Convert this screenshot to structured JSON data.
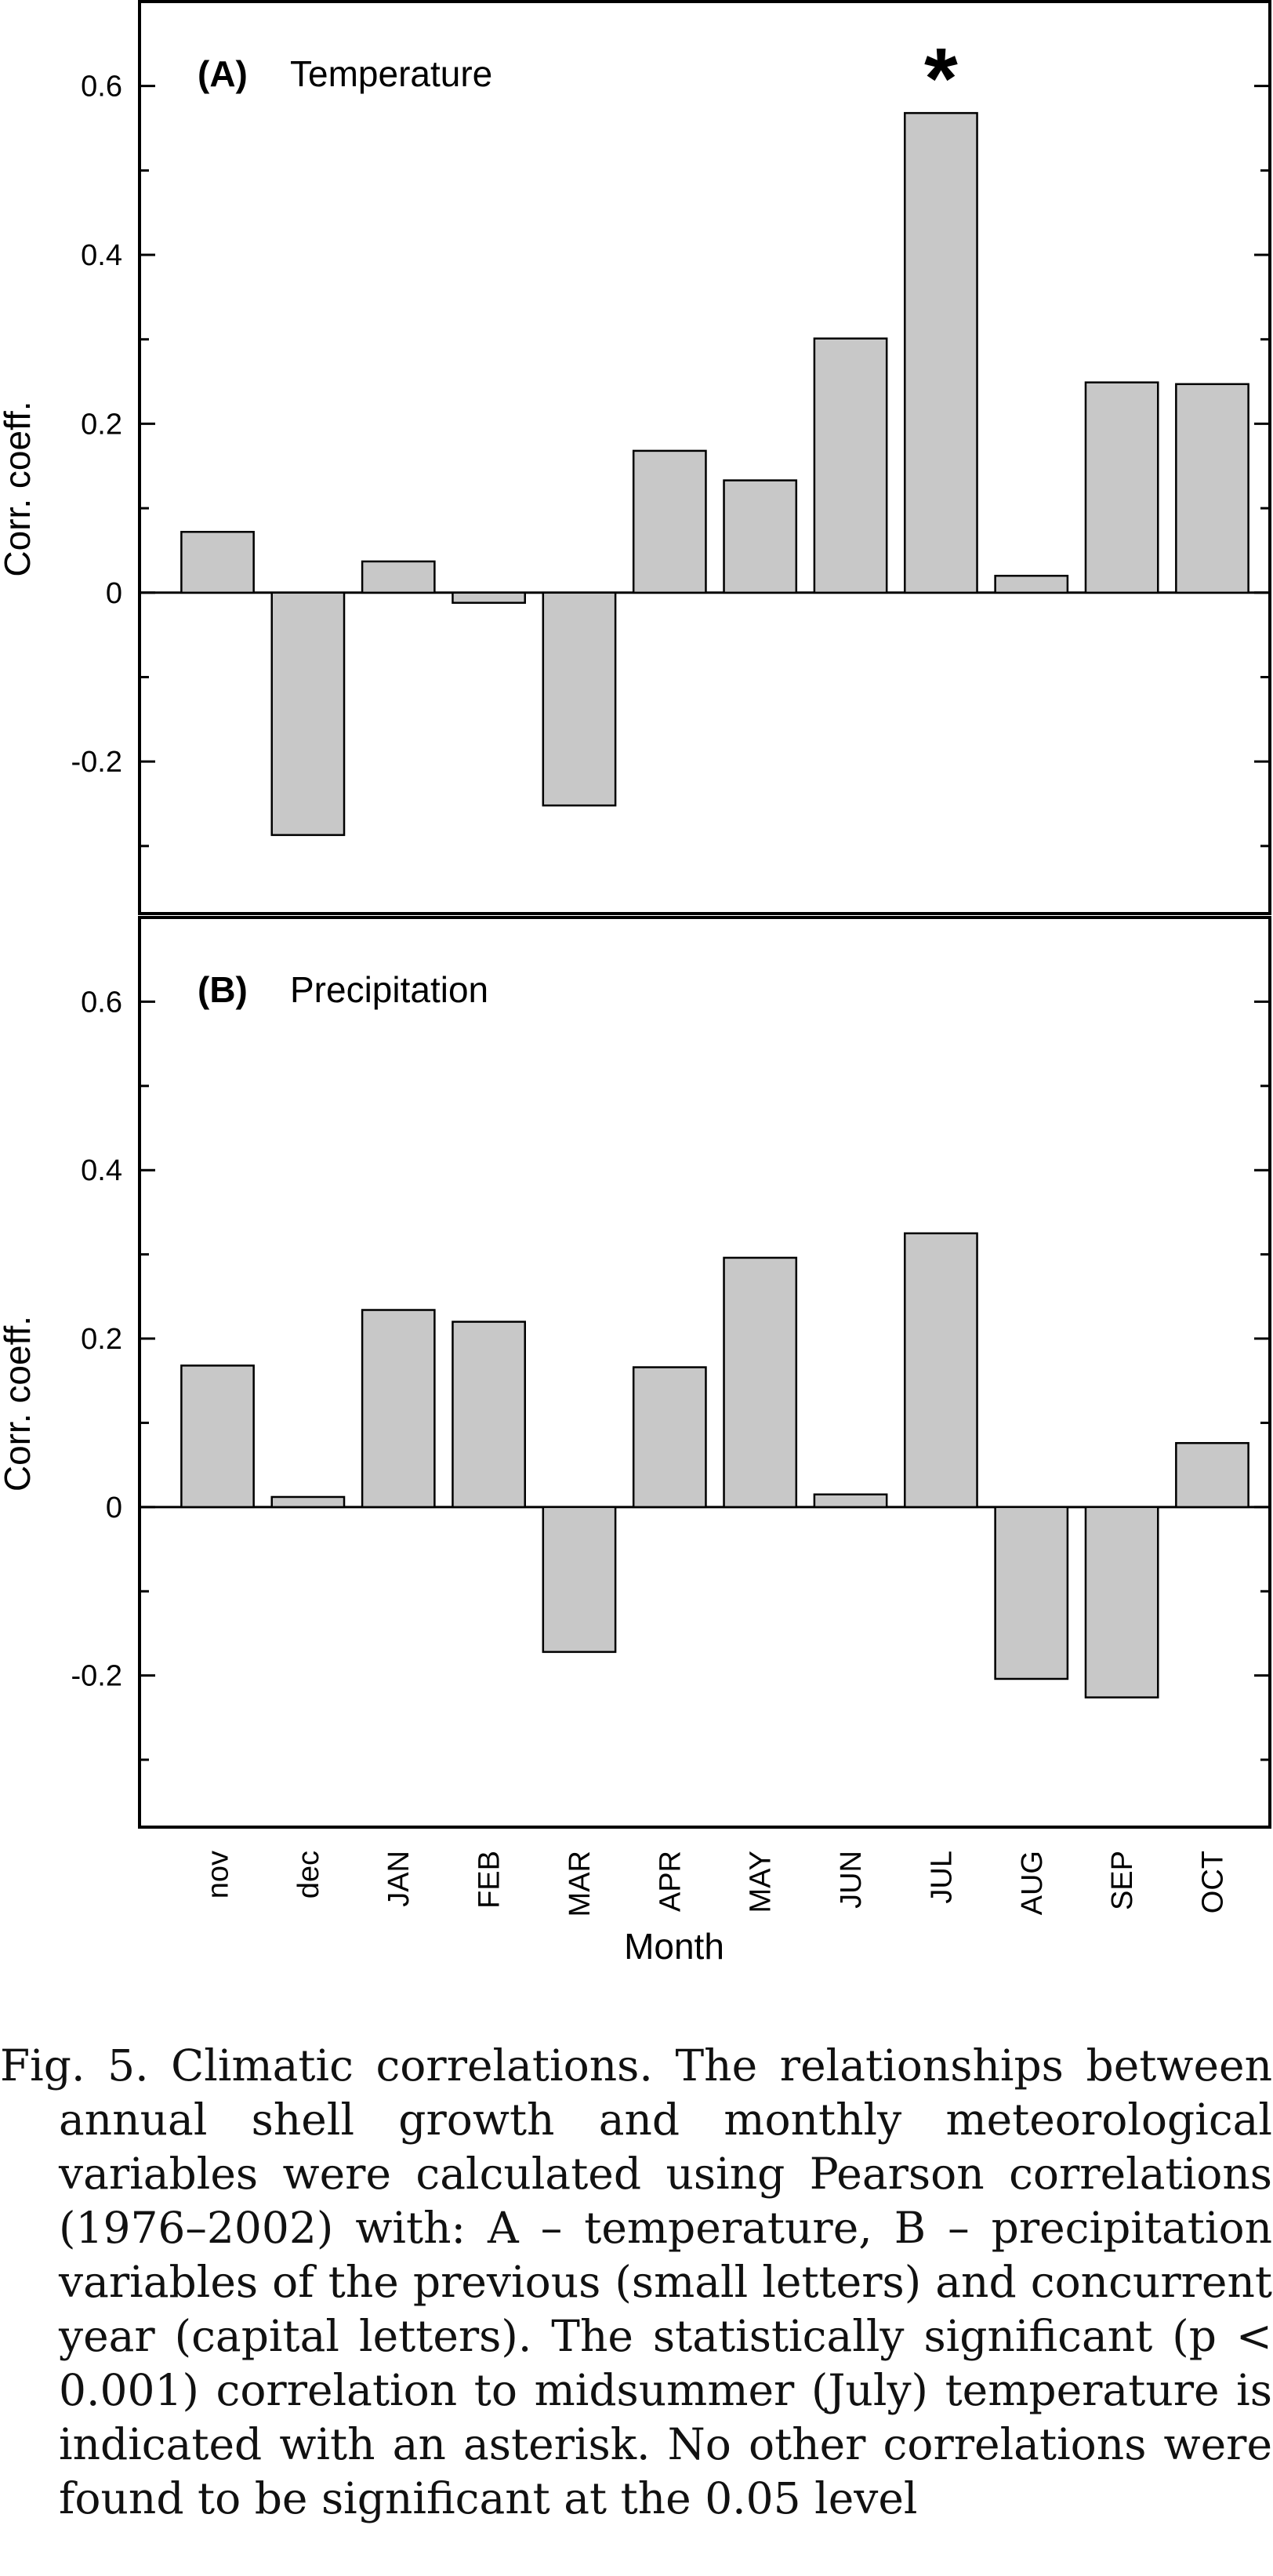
{
  "chart_data": {
    "type": "bar",
    "categories": [
      "nov",
      "dec",
      "JAN",
      "FEB",
      "MAR",
      "APR",
      "MAY",
      "JUN",
      "JUL",
      "AUG",
      "SEP",
      "OCT"
    ],
    "xlabel": "Month",
    "ylim": [
      -0.38,
      0.7
    ],
    "yticks": [
      -0.2,
      0,
      0.2,
      0.4,
      0.6
    ],
    "ytick_labels": [
      "-0.2",
      "0",
      "0.2",
      "0.4",
      "0.6"
    ],
    "bar_color": "#c8c8c8",
    "grid": false,
    "panels": [
      {
        "letter": "(A)",
        "name": "Temperature",
        "ylabel": "Corr. coeff.",
        "values": [
          0.072,
          -0.287,
          0.037,
          -0.012,
          -0.252,
          0.168,
          0.133,
          0.301,
          0.568,
          0.02,
          0.249,
          0.247
        ],
        "significance_marker": {
          "category": "JUL",
          "symbol": "*"
        }
      },
      {
        "letter": "(B)",
        "name": "Precipitation",
        "ylabel": "Corr. coeff.",
        "values": [
          0.168,
          0.012,
          0.234,
          0.22,
          -0.172,
          0.166,
          0.296,
          0.015,
          0.325,
          -0.204,
          -0.226,
          0.076
        ]
      }
    ]
  },
  "caption": {
    "text": "Fig. 5. Climatic correlations. The relationships between annual shell growth and monthly meteorological variables were calculated using Pearson correlations (1976–2002) with: A – temperature, B – precipitation variables of the previous (small letters) and concurrent year (capital letters). The statistically significant (p < 0.001) correlation to midsummer (July) temperature is indicated with an asterisk. No other correlations were found to be significant at the 0.05 level"
  }
}
